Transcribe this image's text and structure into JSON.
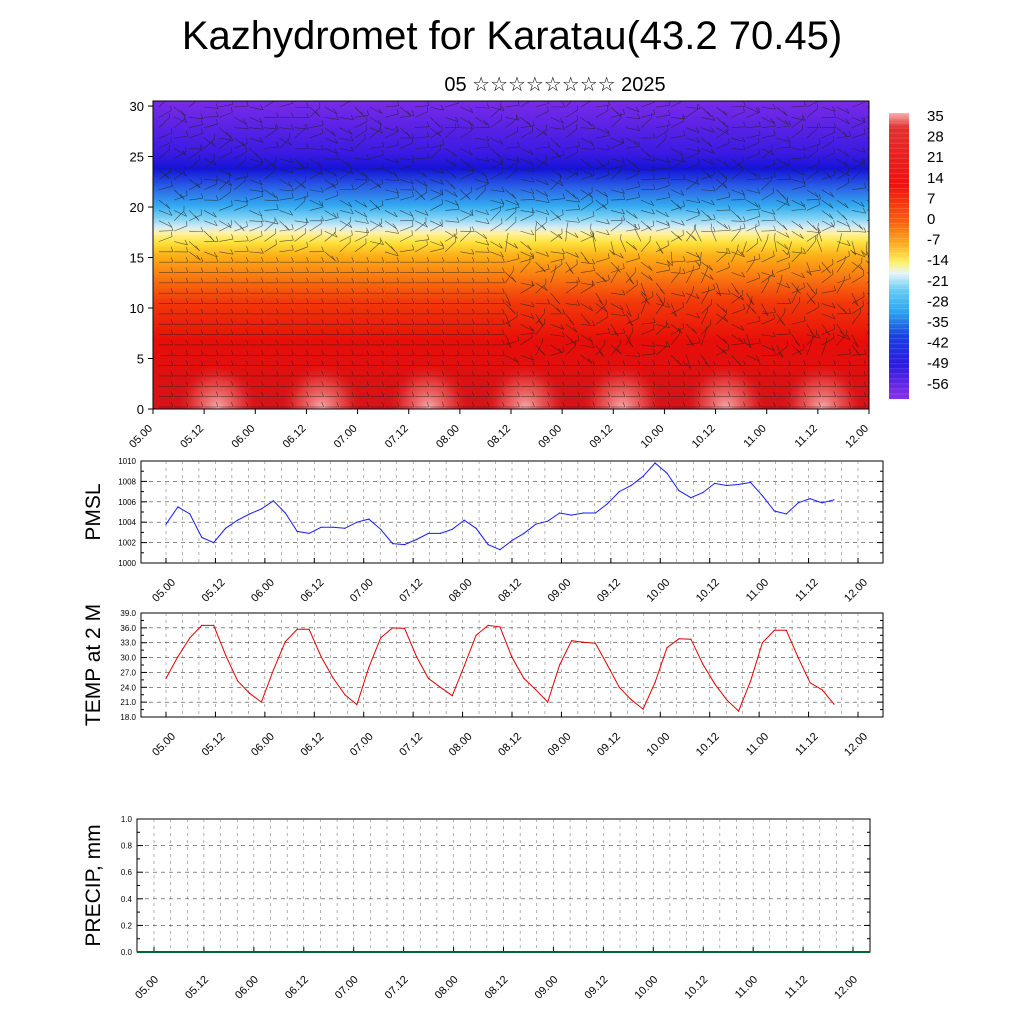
{
  "title": "Kazhydromet for Karatau(43.2 70.45)",
  "subtitle": "05 ☆☆☆☆☆☆☆☆ 2025",
  "colors": {
    "pmsl_line": "#1a1aff",
    "temp_line": "#e00000",
    "precip_line": "#006633"
  },
  "time_ticks": [
    "05.00",
    "05.12",
    "06.00",
    "06.12",
    "07.00",
    "07.12",
    "08.00",
    "08.12",
    "09.00",
    "09.12",
    "10.00",
    "10.12",
    "11.00",
    "11.12",
    "12.00"
  ],
  "chart_data": [
    {
      "type": "heatmap",
      "name": "cross-section",
      "xlabel": "",
      "ylabel": "",
      "y_ticks": [
        0,
        5,
        10,
        15,
        20,
        25,
        30
      ],
      "ylim": [
        0,
        30.5
      ],
      "x_ticks": [
        "05.00",
        "05.12",
        "06.00",
        "06.12",
        "07.00",
        "07.12",
        "08.00",
        "08.12",
        "09.00",
        "09.12",
        "10.00",
        "10.12",
        "11.00",
        "11.12",
        "12.00"
      ],
      "colorbar_labels": [
        "35",
        "28",
        "21",
        "14",
        "7",
        "0",
        "-7",
        "-14",
        "-21",
        "-28",
        "-35",
        "-42",
        "-49",
        "-56"
      ],
      "colorbar_range": [
        -60,
        38
      ],
      "wind_barbs": true
    },
    {
      "type": "line",
      "name": "pmsl",
      "ylabel": "PMSL",
      "ylim": [
        1000,
        1010
      ],
      "y_ticks": [
        "1000",
        "1002",
        "1004",
        "1006",
        "1008",
        "1010"
      ],
      "x_ticks": [
        "05.00",
        "05.12",
        "06.00",
        "06.12",
        "07.00",
        "07.12",
        "08.00",
        "08.12",
        "09.00",
        "09.12",
        "10.00",
        "10.12",
        "11.00",
        "11.12",
        "12.00"
      ],
      "grid": true,
      "values": [
        1003.8,
        1005.5,
        1004.8,
        1002.5,
        1002.0,
        1003.4,
        1004.2,
        1004.8,
        1005.3,
        1006.1,
        1004.9,
        1003.1,
        1002.9,
        1003.5,
        1003.5,
        1003.4,
        1004.0,
        1004.3,
        1003.3,
        1001.9,
        1001.8,
        1002.3,
        1002.9,
        1002.9,
        1003.3,
        1004.2,
        1003.4,
        1001.8,
        1001.3,
        1002.2,
        1002.9,
        1003.8,
        1004.1,
        1004.9,
        1004.7,
        1004.9,
        1004.9,
        1005.8,
        1007.0,
        1007.6,
        1008.5,
        1009.8,
        1008.8,
        1007.1,
        1006.4,
        1006.9,
        1007.8,
        1007.6,
        1007.7,
        1007.9,
        1006.6,
        1005.1,
        1004.8,
        1005.9,
        1006.3,
        1005.9,
        1006.2
      ]
    },
    {
      "type": "line",
      "name": "temp",
      "ylabel": "TEMP at 2 M",
      "ylim": [
        18,
        39
      ],
      "y_ticks": [
        "18.0",
        "21.0",
        "24.0",
        "27.0",
        "30.0",
        "33.0",
        "36.0",
        "39.0"
      ],
      "x_ticks": [
        "05.00",
        "05.12",
        "06.00",
        "06.12",
        "07.00",
        "07.12",
        "08.00",
        "08.12",
        "09.00",
        "09.12",
        "10.00",
        "10.12",
        "11.00",
        "11.12",
        "12.00"
      ],
      "grid": true,
      "values": [
        25.8,
        30.2,
        34.0,
        36.5,
        36.5,
        30.5,
        25.3,
        22.8,
        21.0,
        27.5,
        33.2,
        35.7,
        35.7,
        30.2,
        25.9,
        22.5,
        20.5,
        28.0,
        34.0,
        36.0,
        35.9,
        30.2,
        25.8,
        24.0,
        22.3,
        28.3,
        34.5,
        36.5,
        36.2,
        30.1,
        25.8,
        23.5,
        21.0,
        28.5,
        33.4,
        33.1,
        32.9,
        28.5,
        24.0,
        21.5,
        19.6,
        25.0,
        32.0,
        33.8,
        33.7,
        28.7,
        24.7,
        21.5,
        19.2,
        25.2,
        33.0,
        35.5,
        35.5,
        30.0,
        24.9,
        23.5,
        20.6
      ]
    },
    {
      "type": "line",
      "name": "precip",
      "ylabel": "PRECIP, mm",
      "ylim": [
        0,
        1
      ],
      "y_ticks": [
        "0.0",
        "0.2",
        "0.4",
        "0.6",
        "0.8",
        "1.0"
      ],
      "x_ticks": [
        "05.00",
        "05.12",
        "06.00",
        "06.12",
        "07.00",
        "07.12",
        "08.00",
        "08.12",
        "09.00",
        "09.12",
        "10.00",
        "10.12",
        "11.00",
        "11.12",
        "12.00"
      ],
      "grid": true,
      "values": [
        0,
        0,
        0,
        0,
        0,
        0,
        0,
        0,
        0,
        0,
        0,
        0,
        0,
        0,
        0,
        0,
        0,
        0,
        0,
        0,
        0,
        0,
        0,
        0,
        0,
        0,
        0,
        0,
        0,
        0,
        0,
        0,
        0,
        0,
        0,
        0,
        0,
        0,
        0,
        0,
        0,
        0,
        0,
        0,
        0,
        0,
        0,
        0,
        0,
        0,
        0,
        0,
        0,
        0,
        0,
        0,
        0
      ]
    }
  ]
}
